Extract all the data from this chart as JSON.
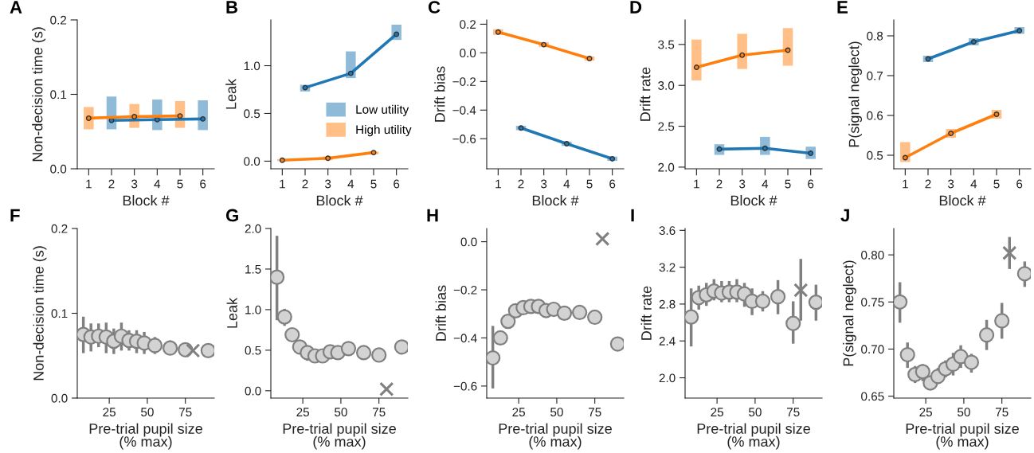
{
  "chart_data": [
    {
      "type": "line",
      "title": "A",
      "xlabel": "Block #",
      "ylabel": "Non-decision time (s)",
      "xlim": [
        0.5,
        6.5
      ],
      "xticks": [
        1,
        2,
        3,
        4,
        5,
        6
      ],
      "ylim": [
        0,
        0.2
      ],
      "yticks": [
        {
          "value": 0,
          "label": "0.0"
        },
        0.1,
        0.2
      ],
      "marker": "circle",
      "series": [
        {
          "color": "#1f77b4",
          "x": [
            2,
            4,
            6
          ],
          "values": [
            0.065,
            0.066,
            0.067
          ],
          "errors": [
            [
              0.053,
              0.097
            ],
            [
              0.052,
              0.093
            ],
            [
              0.052,
              0.092
            ]
          ]
        },
        {
          "color": "#ff7f0e",
          "x": [
            1,
            3,
            5
          ],
          "values": [
            0.068,
            0.07,
            0.071
          ],
          "errors": [
            [
              0.053,
              0.083
            ],
            [
              0.055,
              0.087
            ],
            [
              0.055,
              0.091
            ]
          ]
        }
      ]
    },
    {
      "type": "line",
      "title": "B",
      "xlabel": "Block #",
      "ylabel": "Leak",
      "xlim": [
        0.5,
        6.5
      ],
      "xticks": [
        1,
        2,
        3,
        4,
        5,
        6
      ],
      "ylim": [
        -0.08,
        1.48
      ],
      "yticks": [
        {
          "value": 0,
          "label": "0.0"
        },
        0.5,
        {
          "value": 1,
          "label": "1.0"
        }
      ],
      "marker": "circle",
      "legend": "center right",
      "series": [
        {
          "name": "Low utility",
          "color": "#1f77b4",
          "x": [
            2,
            4,
            6
          ],
          "values": [
            0.77,
            0.92,
            1.33
          ],
          "errors": [
            [
              0.73,
              0.8
            ],
            [
              0.87,
              1.15
            ],
            [
              1.27,
              1.43
            ]
          ]
        },
        {
          "name": "High utility",
          "color": "#ff7f0e",
          "x": [
            1,
            3,
            5
          ],
          "values": [
            0.01,
            0.03,
            0.09
          ],
          "errors": [
            [
              0.0,
              0.02
            ],
            [
              0.01,
              0.05
            ],
            [
              0.07,
              0.1
            ]
          ]
        }
      ]
    },
    {
      "type": "line",
      "title": "C",
      "xlabel": "Block #",
      "ylabel": "Drift bias",
      "xlim": [
        0.5,
        6.5
      ],
      "xticks": [
        1,
        2,
        3,
        4,
        5,
        6
      ],
      "ylim": [
        -0.81,
        0.23
      ],
      "yticks": [
        {
          "value": -0.6,
          "label": "−0.6"
        },
        {
          "value": -0.4,
          "label": "−0.4"
        },
        {
          "value": -0.2,
          "label": "−0.2"
        },
        {
          "value": 0,
          "label": "0.0"
        },
        0.2
      ],
      "marker": "circle",
      "series": [
        {
          "color": "#1f77b4",
          "x": [
            2,
            4,
            6
          ],
          "values": [
            -0.525,
            -0.635,
            -0.74
          ],
          "errors": [
            [
              -0.54,
              -0.51
            ],
            [
              -0.65,
              -0.62
            ],
            [
              -0.755,
              -0.725
            ]
          ]
        },
        {
          "color": "#ff7f0e",
          "x": [
            1,
            3,
            5
          ],
          "values": [
            0.145,
            0.057,
            -0.04
          ],
          "errors": [
            [
              0.125,
              0.165
            ],
            [
              0.04,
              0.074
            ],
            [
              -0.055,
              -0.025
            ]
          ]
        }
      ]
    },
    {
      "type": "line",
      "title": "D",
      "xlabel": "Block #",
      "ylabel": "Drift rate",
      "xlim": [
        0.5,
        6.5
      ],
      "xticks": [
        1,
        2,
        3,
        4,
        5,
        6
      ],
      "ylim": [
        1.98,
        3.8
      ],
      "yticks": [
        {
          "value": 2,
          "label": "2.0"
        },
        2.5,
        {
          "value": 3,
          "label": "3.0"
        },
        3.5
      ],
      "marker": "circle",
      "series": [
        {
          "color": "#1f77b4",
          "x": [
            2,
            4,
            6
          ],
          "values": [
            2.22,
            2.23,
            2.17
          ],
          "errors": [
            [
              2.15,
              2.28
            ],
            [
              2.15,
              2.37
            ],
            [
              2.1,
              2.25
            ]
          ]
        },
        {
          "color": "#ff7f0e",
          "x": [
            1,
            3,
            5
          ],
          "values": [
            3.22,
            3.37,
            3.43
          ],
          "errors": [
            [
              3.06,
              3.56
            ],
            [
              3.2,
              3.63
            ],
            [
              3.24,
              3.7
            ]
          ]
        }
      ]
    },
    {
      "type": "line",
      "title": "E",
      "xlabel": "Block #",
      "ylabel": "P(signal neglect)",
      "xlim": [
        0.5,
        6.5
      ],
      "xticks": [
        1,
        2,
        3,
        4,
        5,
        6
      ],
      "ylim": [
        0.466,
        0.84
      ],
      "yticks": [
        0.5,
        0.6,
        0.7,
        0.8
      ],
      "marker": "circle",
      "series": [
        {
          "color": "#1f77b4",
          "x": [
            2,
            4,
            6
          ],
          "values": [
            0.742,
            0.785,
            0.813
          ],
          "errors": [
            [
              0.734,
              0.75
            ],
            [
              0.776,
              0.794
            ],
            [
              0.805,
              0.822
            ]
          ]
        },
        {
          "color": "#ff7f0e",
          "x": [
            1,
            3,
            5
          ],
          "values": [
            0.494,
            0.555,
            0.603
          ],
          "errors": [
            [
              0.483,
              0.533
            ],
            [
              0.544,
              0.566
            ],
            [
              0.592,
              0.614
            ]
          ]
        }
      ]
    },
    {
      "type": "scatter",
      "title": "F",
      "xlabel": "Pre-trial pupil size\n(% max)",
      "ylabel": "Non-decision time (s)",
      "xlim": [
        4,
        94
      ],
      "xticks": [
        25,
        50,
        75
      ],
      "ylim": [
        0,
        0.2
      ],
      "yticks": [
        {
          "value": 0,
          "label": "0.0"
        },
        0.1,
        0.2
      ],
      "series": [
        {
          "color": "#d3d3d3",
          "marker": "circle",
          "x": [
            8,
            13,
            18,
            23,
            28,
            33,
            38,
            43,
            48,
            55,
            65,
            75,
            90
          ],
          "values": [
            0.075,
            0.072,
            0.073,
            0.072,
            0.067,
            0.073,
            0.068,
            0.067,
            0.065,
            0.062,
            0.059,
            0.057,
            0.056
          ],
          "errors": [
            [
              0.053,
              0.096
            ],
            [
              0.055,
              0.088
            ],
            [
              0.06,
              0.088
            ],
            [
              0.053,
              0.089
            ],
            [
              0.052,
              0.082
            ],
            [
              0.056,
              0.089
            ],
            [
              0.056,
              0.08
            ],
            [
              0.053,
              0.08
            ],
            [
              0.052,
              0.078
            ],
            [
              0.052,
              0.072
            ],
            [
              0.051,
              0.068
            ],
            null,
            null
          ]
        },
        {
          "color": "#808080",
          "marker": "cross",
          "x": [
            80
          ],
          "values": [
            0.056
          ]
        }
      ]
    },
    {
      "type": "scatter",
      "title": "G",
      "xlabel": "Pre-trial pupil size\n(% max)",
      "ylabel": "Leak",
      "xlim": [
        4,
        94
      ],
      "xticks": [
        25,
        50,
        75
      ],
      "ylim": [
        -0.09,
        2.0
      ],
      "yticks": [
        {
          "value": 0,
          "label": "0.0"
        },
        0.5,
        {
          "value": 1,
          "label": "1.0"
        },
        1.5,
        {
          "value": 2,
          "label": "2.0"
        }
      ],
      "series": [
        {
          "color": "#d3d3d3",
          "marker": "circle",
          "x": [
            8,
            13,
            18,
            23,
            28,
            33,
            38,
            43,
            48,
            55,
            65,
            75,
            90
          ],
          "values": [
            1.4,
            0.91,
            0.69,
            0.54,
            0.47,
            0.43,
            0.43,
            0.48,
            0.47,
            0.52,
            0.47,
            0.44,
            0.54
          ],
          "errors": [
            [
              0.87,
              1.91
            ],
            [
              0.8,
              1.01
            ],
            null,
            null,
            [
              0.37,
              0.55
            ],
            null,
            null,
            null,
            null,
            null,
            null,
            null,
            null
          ]
        },
        {
          "color": "#808080",
          "marker": "cross",
          "x": [
            80
          ],
          "values": [
            0.02
          ]
        }
      ]
    },
    {
      "type": "scatter",
      "title": "H",
      "xlabel": "Pre-trial pupil size\n(% max)",
      "ylabel": "Drift bias",
      "xlim": [
        4,
        94
      ],
      "xticks": [
        25,
        50,
        75
      ],
      "ylim": [
        -0.65,
        0.055
      ],
      "yticks": [
        {
          "value": -0.6,
          "label": "−0.6"
        },
        {
          "value": -0.4,
          "label": "−0.4"
        },
        {
          "value": -0.2,
          "label": "−0.2"
        },
        {
          "value": 0,
          "label": "0.0"
        }
      ],
      "series": [
        {
          "color": "#d3d3d3",
          "marker": "circle",
          "x": [
            8,
            13,
            18,
            23,
            28,
            33,
            38,
            43,
            48,
            55,
            65,
            75,
            90
          ],
          "values": [
            -0.483,
            -0.4,
            -0.331,
            -0.287,
            -0.274,
            -0.269,
            -0.269,
            -0.286,
            -0.281,
            -0.297,
            -0.294,
            -0.314,
            -0.425
          ],
          "errors": [
            [
              -0.61,
              -0.35
            ],
            null,
            null,
            null,
            null,
            null,
            null,
            null,
            null,
            null,
            null,
            null,
            null
          ]
        },
        {
          "color": "#808080",
          "marker": "cross",
          "x": [
            80
          ],
          "values": [
            0.012
          ]
        }
      ]
    },
    {
      "type": "scatter",
      "title": "I",
      "xlabel": "Pre-trial pupil size\n(% max)",
      "ylabel": "Drift rate",
      "xlim": [
        4,
        94
      ],
      "xticks": [
        25,
        50,
        75
      ],
      "ylim": [
        1.78,
        3.62
      ],
      "yticks": [
        {
          "value": 2,
          "label": "2.0"
        },
        2.4,
        2.8,
        3.2,
        3.6
      ],
      "series": [
        {
          "color": "#d3d3d3",
          "marker": "circle",
          "x": [
            8,
            13,
            18,
            23,
            28,
            33,
            38,
            43,
            48,
            55,
            65,
            75,
            90
          ],
          "values": [
            2.66,
            2.87,
            2.9,
            2.94,
            2.92,
            2.93,
            2.93,
            2.91,
            2.83,
            2.83,
            2.88,
            2.59,
            2.82
          ],
          "errors": [
            [
              2.34,
              2.97
            ],
            [
              2.74,
              3.0
            ],
            [
              2.78,
              3.03
            ],
            [
              2.84,
              3.07
            ],
            [
              2.82,
              3.05
            ],
            [
              2.82,
              3.05
            ],
            [
              2.82,
              3.07
            ],
            [
              2.77,
              3.03
            ],
            [
              2.68,
              2.97
            ],
            [
              2.72,
              2.94
            ],
            [
              2.69,
              3.06
            ],
            [
              2.37,
              2.83
            ],
            [
              2.62,
              3.01
            ]
          ]
        },
        {
          "color": "#808080",
          "marker": "cross",
          "x": [
            80
          ],
          "values": [
            2.95
          ],
          "errors": [
            [
              2.62,
              3.29
            ]
          ]
        }
      ]
    },
    {
      "type": "scatter",
      "title": "J",
      "xlabel": "Pre-trial pupil size\n(% max)",
      "ylabel": "P(signal neglect)",
      "xlim": [
        4,
        94
      ],
      "xticks": [
        25,
        50,
        75
      ],
      "ylim": [
        0.648,
        0.828
      ],
      "yticks": [
        {
          "value": 0.65,
          "label": "0.65"
        },
        {
          "value": 0.7,
          "label": "0.70"
        },
        {
          "value": 0.75,
          "label": "0.75"
        },
        {
          "value": 0.8,
          "label": "0.80"
        }
      ],
      "series": [
        {
          "color": "#d3d3d3",
          "marker": "circle",
          "x": [
            8,
            13,
            18,
            23,
            28,
            33,
            38,
            43,
            48,
            55,
            65,
            75,
            90
          ],
          "values": [
            0.75,
            0.694,
            0.673,
            0.676,
            0.664,
            0.671,
            0.679,
            0.684,
            0.692,
            0.686,
            0.715,
            0.73,
            0.78
          ],
          "errors": [
            [
              0.728,
              0.771
            ],
            [
              0.68,
              0.707
            ],
            [
              0.664,
              0.682
            ],
            [
              0.666,
              0.684
            ],
            [
              0.657,
              0.672
            ],
            [
              0.663,
              0.68
            ],
            [
              0.67,
              0.688
            ],
            [
              0.672,
              0.696
            ],
            [
              0.68,
              0.704
            ],
            [
              0.675,
              0.695
            ],
            [
              0.699,
              0.731
            ],
            [
              0.711,
              0.749
            ],
            [
              0.766,
              0.793
            ]
          ]
        },
        {
          "color": "#808080",
          "marker": "cross",
          "x": [
            80
          ],
          "values": [
            0.802
          ],
          "errors": [
            [
              0.785,
              0.819
            ]
          ]
        }
      ]
    }
  ]
}
